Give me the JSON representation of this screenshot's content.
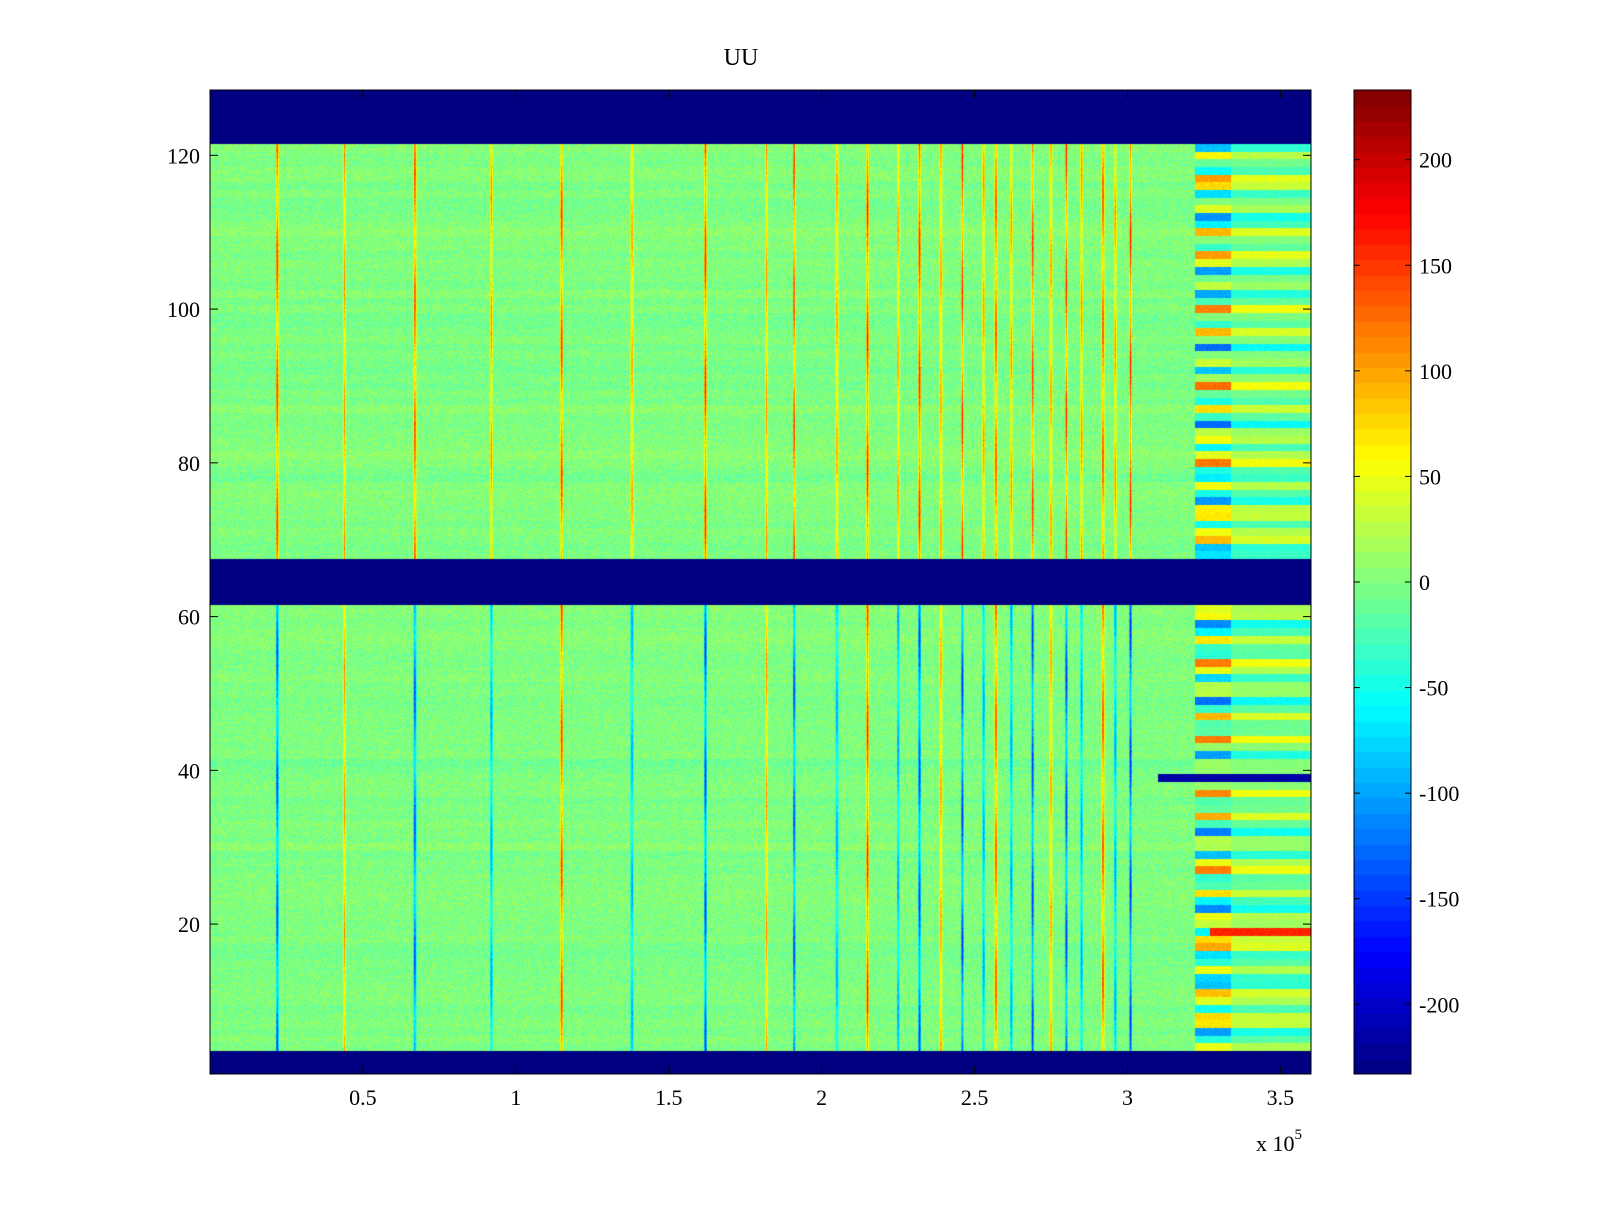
{
  "chart_data": {
    "type": "heatmap",
    "title": "UU",
    "xlabel": "",
    "ylabel": "",
    "x_multiplier_label": "x 10",
    "x_multiplier_exponent": "5",
    "xlim": [
      0,
      3.6
    ],
    "ylim": [
      0.5,
      128.5
    ],
    "x_ticks": [
      0.5,
      1,
      1.5,
      2,
      2.5,
      3,
      3.5
    ],
    "x_tick_labels": [
      "0.5",
      "1",
      "1.5",
      "2",
      "2.5",
      "3",
      "3.5"
    ],
    "y_ticks": [
      20,
      40,
      60,
      80,
      100,
      120
    ],
    "y_tick_labels": [
      "20",
      "40",
      "60",
      "80",
      "100",
      "120"
    ],
    "colorbar": {
      "colormap": "jet",
      "range": [
        -233,
        233
      ],
      "ticks": [
        -200,
        -150,
        -100,
        -50,
        0,
        50,
        100,
        150,
        200
      ],
      "tick_labels": [
        "-200",
        "-150",
        "-100",
        "-50",
        "0",
        "50",
        "100",
        "150",
        "200"
      ]
    },
    "background_value": -233,
    "masked_row_bands": [
      [
        1,
        3
      ],
      [
        62,
        67
      ],
      [
        122,
        128
      ]
    ],
    "noise_mean": 0,
    "noise_spread": 25,
    "spike_columns": [
      0.22,
      0.44,
      0.67,
      0.92,
      1.15,
      1.38,
      1.62,
      1.82,
      1.91,
      2.05,
      2.15,
      2.25,
      2.32,
      2.39,
      2.46,
      2.53,
      2.57,
      2.62,
      2.69,
      2.75,
      2.8,
      2.85,
      2.92,
      2.96,
      3.01
    ],
    "disturbed_region": {
      "x_start": 3.22,
      "x_end": 3.6
    },
    "notable_rows": [
      {
        "row": 39,
        "value": -215,
        "x_start": 3.1
      },
      {
        "row": 19,
        "value": 160,
        "x_start": 3.27
      }
    ]
  }
}
